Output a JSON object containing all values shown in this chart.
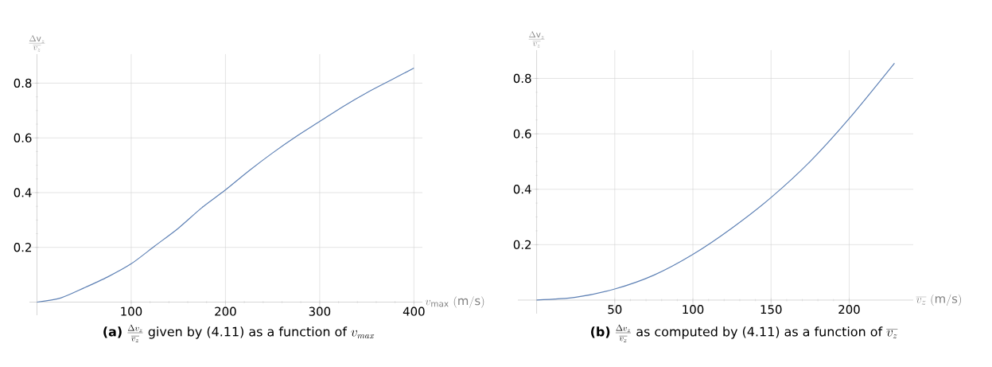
{
  "chart_data": [
    {
      "type": "line",
      "xlabel": "v_{\\mathrm{max}}\\ \\mathrm{(m/s)}",
      "ylabel": "\\frac{\\Delta \\mathrm{v}_z}{\\overline{v_z}}",
      "x": [
        0,
        25,
        50,
        75,
        100,
        125,
        150,
        175,
        200,
        225,
        250,
        275,
        300,
        325,
        350,
        375,
        400
      ],
      "series": [
        {
          "color": "#5e81b5",
          "values": [
            0,
            0.015,
            0.052,
            0.092,
            0.14,
            0.205,
            0.27,
            0.345,
            0.41,
            0.48,
            0.545,
            0.605,
            0.66,
            0.715,
            0.765,
            0.81,
            0.855
          ]
        }
      ],
      "xlim": [
        -8,
        409
      ],
      "ylim": [
        -0.048,
        0.906
      ],
      "xticks": [
        100,
        200,
        300,
        400
      ],
      "yticks": [
        0.2,
        0.4,
        0.6,
        0.8
      ],
      "grid": true,
      "annotations": [
        "\\textbf{(a)}\\ \\frac{\\Delta v_z}{\\overline{v_z}}\\ \\mbox{given by (4.11) as a function of}\\ v_{max}"
      ]
    },
    {
      "type": "line",
      "xlabel": "\\overline{v_z}\\ \\mathrm{(m/s)}",
      "ylabel": "\\frac{\\Delta \\mathrm{v}_z}{\\overline{v_z}}",
      "x": [
        0,
        25,
        50,
        75,
        100,
        125,
        150,
        175,
        200,
        229
      ],
      "series": [
        {
          "color": "#5e81b5",
          "values": [
            0,
            0.01,
            0.04,
            0.09,
            0.165,
            0.26,
            0.37,
            0.5,
            0.655,
            0.855
          ]
        }
      ],
      "xlim": [
        -12,
        241
      ],
      "ylim": [
        -0.049,
        0.902
      ],
      "xticks": [
        50,
        100,
        150,
        200
      ],
      "yticks": [
        0.2,
        0.4,
        0.6,
        0.8
      ],
      "grid": true,
      "annotations": [
        "\\textbf{(b)}\\ \\frac{\\Delta v_z}{\\overline{v_z}}\\ \\mbox{as computed by (4.11) as a function of}\\ \\overline{v_z}"
      ]
    }
  ]
}
